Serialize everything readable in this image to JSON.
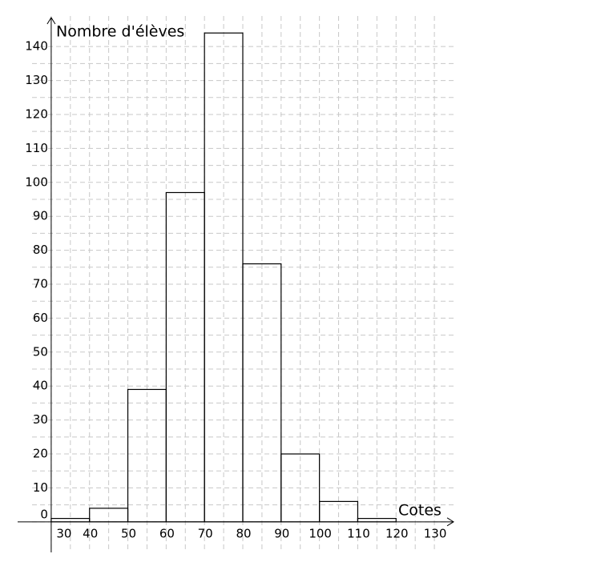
{
  "chart_data": {
    "type": "histogram",
    "x_label": "Cotes",
    "y_label": "Nombre d'élèves",
    "bins": [
      30,
      40,
      50,
      60,
      70,
      80,
      90,
      100,
      110,
      120
    ],
    "values": [
      1,
      4,
      39,
      97,
      144,
      76,
      20,
      6,
      1
    ],
    "color": "#000000",
    "xlim": [
      25,
      135
    ],
    "ylim": [
      -9,
      149
    ],
    "xticks": [
      30,
      40,
      50,
      60,
      70,
      80,
      90,
      100,
      110,
      120,
      130
    ],
    "yticks": [
      0,
      10,
      20,
      30,
      40,
      50,
      60,
      70,
      80,
      90,
      100,
      110,
      120,
      130,
      140
    ],
    "grid": true
  }
}
